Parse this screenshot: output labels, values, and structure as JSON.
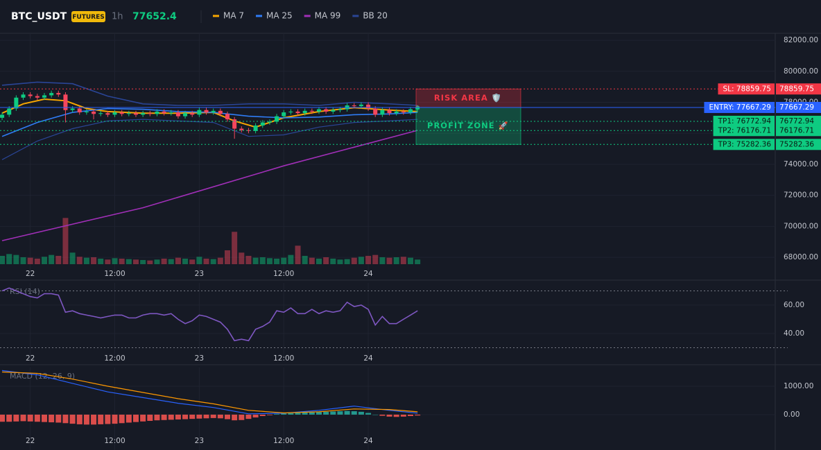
{
  "header": {
    "symbol": "BTC_USDT",
    "badge": "FUTURES",
    "interval": "1h",
    "price": 77652.4
  },
  "chart_data": [
    {
      "type": "candlestick",
      "x": [
        0,
        1,
        2,
        3,
        4,
        5,
        6,
        7,
        8,
        9,
        10,
        11,
        12,
        13,
        14,
        15,
        16,
        17,
        18,
        19,
        20,
        21,
        22,
        23,
        24,
        25,
        26,
        27,
        28,
        29,
        30,
        31,
        32,
        33,
        34,
        35,
        36,
        37,
        38,
        39,
        40,
        41,
        42,
        43,
        44,
        45,
        46,
        47,
        48,
        49,
        50,
        51,
        52,
        53,
        54,
        55,
        56,
        57,
        58,
        59
      ],
      "open": [
        77000,
        77200,
        77600,
        78300,
        78500,
        78400,
        78300,
        78450,
        78600,
        78500,
        77500,
        77600,
        77350,
        77400,
        77250,
        77300,
        77200,
        77350,
        77250,
        77300,
        77200,
        77300,
        77250,
        77400,
        77300,
        77350,
        77100,
        77300,
        77200,
        77500,
        77350,
        77450,
        77250,
        76900,
        76300,
        76200,
        76150,
        76500,
        76700,
        76750,
        77100,
        77350,
        77400,
        77300,
        77450,
        77400,
        77550,
        77400,
        77500,
        77550,
        77800,
        77750,
        77850,
        77600,
        77200,
        77500,
        77300,
        77400,
        77350,
        77550
      ],
      "high": [
        77350,
        77750,
        78450,
        78650,
        78650,
        78550,
        78600,
        78750,
        78750,
        78650,
        77750,
        77750,
        77550,
        77550,
        77450,
        77450,
        77500,
        77500,
        77450,
        77450,
        77450,
        77450,
        77550,
        77550,
        77500,
        77500,
        77450,
        77450,
        77650,
        77650,
        77600,
        77600,
        77400,
        77050,
        76450,
        76350,
        76650,
        76850,
        76900,
        77250,
        77500,
        77550,
        77550,
        77600,
        77600,
        77700,
        77700,
        77650,
        77700,
        77950,
        77950,
        78000,
        78000,
        77750,
        77650,
        77650,
        77550,
        77550,
        77700,
        77800
      ],
      "low": [
        76850,
        77050,
        77450,
        78150,
        78250,
        78150,
        78150,
        78300,
        78350,
        76700,
        77350,
        77200,
        77200,
        76900,
        77100,
        77050,
        77050,
        77100,
        77100,
        77050,
        77050,
        77100,
        77100,
        77150,
        77150,
        76950,
        76950,
        77050,
        77050,
        77200,
        77200,
        77100,
        76750,
        75650,
        76050,
        76000,
        76000,
        76350,
        76550,
        76600,
        76950,
        77200,
        77150,
        77150,
        77250,
        77250,
        77250,
        77250,
        77350,
        77400,
        77600,
        77600,
        77450,
        77050,
        77050,
        77150,
        77150,
        77200,
        77200,
        77400
      ],
      "close": [
        77200,
        77600,
        78300,
        78500,
        78400,
        78300,
        78450,
        78600,
        78500,
        77500,
        77600,
        77350,
        77400,
        77250,
        77300,
        77200,
        77350,
        77250,
        77300,
        77200,
        77300,
        77250,
        77400,
        77300,
        77350,
        77100,
        77300,
        77200,
        77500,
        77350,
        77450,
        77250,
        76900,
        76300,
        76200,
        76150,
        76500,
        76700,
        76750,
        77100,
        77350,
        77400,
        77300,
        77450,
        77400,
        77550,
        77400,
        77500,
        77550,
        77800,
        77750,
        77850,
        77600,
        77200,
        77500,
        77300,
        77400,
        77350,
        77550,
        77652.4
      ],
      "up_color": "#0ecb81",
      "down_color": "#f6465d",
      "xlim": [
        -0.3,
        109.8
      ],
      "xticks": [
        {
          "value": 4,
          "label": "22"
        },
        {
          "value": 16,
          "label": "12:00"
        },
        {
          "value": 28,
          "label": "23"
        },
        {
          "value": 40,
          "label": "12:00"
        },
        {
          "value": 52,
          "label": "24"
        }
      ],
      "ylim": [
        66800,
        82450
      ],
      "yticks": [
        {
          "value": 68000,
          "label": "68000.00"
        },
        {
          "value": 70000,
          "label": "70000.00"
        },
        {
          "value": 72000,
          "label": "72000.00"
        },
        {
          "value": 74000,
          "label": "74000.00"
        },
        {
          "value": 76000,
          "label": "76000.00"
        },
        {
          "value": 78000,
          "label": "78000.00"
        },
        {
          "value": 80000,
          "label": "80000.00"
        },
        {
          "value": 82000,
          "label": "82000.00"
        }
      ],
      "grid": true,
      "lines": [
        {
          "name": "MA 7",
          "color": "#f7a600",
          "x": [
            0,
            3,
            6,
            9,
            12,
            15,
            20,
            25,
            30,
            33,
            36,
            40,
            45,
            50,
            55,
            59
          ],
          "values": [
            77300,
            77900,
            78200,
            78100,
            77600,
            77400,
            77300,
            77300,
            77350,
            76800,
            76400,
            77000,
            77400,
            77650,
            77500,
            77400
          ]
        },
        {
          "name": "MA 25",
          "color": "#2f7cf6",
          "x": [
            0,
            5,
            10,
            15,
            20,
            25,
            30,
            35,
            40,
            45,
            50,
            55,
            59
          ],
          "values": [
            75800,
            76700,
            77350,
            77600,
            77550,
            77400,
            77350,
            77100,
            77000,
            77050,
            77200,
            77250,
            77350
          ]
        },
        {
          "name": "MA 99",
          "color": "#a12fb8",
          "x": [
            0,
            20,
            40,
            59
          ],
          "values": [
            69075,
            71200,
            73900,
            76190
          ]
        },
        {
          "name": "BB 20",
          "color": "#2a4596",
          "x": [
            0,
            5,
            10,
            15,
            20,
            25,
            30,
            35,
            40,
            45,
            50,
            55,
            59
          ],
          "values": [
            79100,
            79300,
            79200,
            78400,
            77900,
            77800,
            77800,
            77900,
            77900,
            77800,
            78000,
            77900,
            77800
          ],
          "lower": [
            74300,
            75500,
            76300,
            76800,
            76900,
            76800,
            76700,
            75800,
            75900,
            76400,
            76700,
            76800,
            76900
          ]
        }
      ],
      "volume": {
        "values": [
          18,
          22,
          20,
          15,
          14,
          12,
          16,
          20,
          18,
          100,
          25,
          16,
          14,
          15,
          12,
          10,
          13,
          12,
          11,
          10,
          9,
          8,
          10,
          12,
          11,
          14,
          12,
          10,
          16,
          12,
          11,
          14,
          30,
          70,
          25,
          18,
          14,
          15,
          13,
          12,
          14,
          20,
          40,
          18,
          14,
          12,
          15,
          12,
          10,
          11,
          14,
          16,
          18,
          20,
          15,
          14,
          15,
          16,
          14,
          10
        ],
        "ylim": [
          0,
          150
        ]
      },
      "levels": [
        {
          "tag": "SL: 78859.75",
          "value": 78859.75,
          "color": "#f23645",
          "style": "dotted"
        },
        {
          "tag": "ENTRY: 77667.29",
          "value": 77667.29,
          "color": "#2962ff",
          "style": "solid"
        },
        {
          "tag": "TP1: 76772.94",
          "value": 76772.94,
          "color": "#0ecb81",
          "style": "dotted"
        },
        {
          "tag": "TP2: 76176.71",
          "value": 76176.71,
          "color": "#0ecb81",
          "style": "dotted"
        },
        {
          "tag": "TP3: 75282.36",
          "value": 75282.36,
          "color": "#0ecb81",
          "style": "dotted"
        }
      ],
      "zones": [
        {
          "label": "RISK AREA 🛡️",
          "from": 78859.75,
          "to": 77667.29,
          "color": "#f23645"
        },
        {
          "label": "PROFIT ZONE 🚀",
          "from": 77667.29,
          "to": 75282.36,
          "color": "#0ecb81"
        }
      ]
    },
    {
      "type": "line",
      "title": "RSI (14)",
      "x": [
        0,
        1,
        2,
        3,
        4,
        5,
        6,
        7,
        8,
        9,
        10,
        11,
        12,
        13,
        14,
        15,
        16,
        17,
        18,
        19,
        20,
        21,
        22,
        23,
        24,
        25,
        26,
        27,
        28,
        29,
        30,
        31,
        32,
        33,
        34,
        35,
        36,
        37,
        38,
        39,
        40,
        41,
        42,
        43,
        44,
        45,
        46,
        47,
        48,
        49,
        50,
        51,
        52,
        53,
        54,
        55,
        56,
        57,
        58,
        59
      ],
      "values": [
        70,
        72,
        70,
        68,
        66,
        65,
        68,
        68,
        67,
        55,
        56,
        54,
        53,
        52,
        51,
        52,
        53,
        53,
        51,
        51,
        53,
        54,
        54,
        53,
        54,
        50,
        47,
        49,
        53,
        52,
        50,
        48,
        43,
        35,
        36,
        35,
        43,
        45,
        48,
        56,
        55,
        58,
        54,
        54,
        57,
        54,
        56,
        55,
        56,
        62,
        59,
        60,
        57,
        46,
        52,
        47,
        47,
        50,
        53,
        56
      ],
      "color": "#7e57c2",
      "xlim": [
        -0.3,
        109.8
      ],
      "xticks": [
        {
          "value": 4,
          "label": "22"
        },
        {
          "value": 16,
          "label": "12:00"
        },
        {
          "value": 28,
          "label": "23"
        },
        {
          "value": 40,
          "label": "12:00"
        },
        {
          "value": 52,
          "label": "24"
        }
      ],
      "ylim": [
        21,
        75.6
      ],
      "yticks": [
        {
          "value": 40,
          "label": "40.00"
        },
        {
          "value": 60,
          "label": "60.00"
        }
      ],
      "levels": [
        70,
        30
      ]
    },
    {
      "type": "bar",
      "title": "MACD (12, 26, 9)",
      "x": [
        0,
        1,
        2,
        3,
        4,
        5,
        6,
        7,
        8,
        9,
        10,
        11,
        12,
        13,
        14,
        15,
        16,
        17,
        18,
        19,
        20,
        21,
        22,
        23,
        24,
        25,
        26,
        27,
        28,
        29,
        30,
        31,
        32,
        33,
        34,
        35,
        36,
        37,
        38,
        39,
        40,
        41,
        42,
        43,
        44,
        45,
        46,
        47,
        48,
        49,
        50,
        51,
        52,
        53,
        54,
        55,
        56,
        57,
        58,
        59
      ],
      "histogram": [
        -250,
        -250,
        -240,
        -230,
        -240,
        -250,
        -260,
        -270,
        -280,
        -300,
        -320,
        -340,
        -350,
        -350,
        -340,
        -330,
        -320,
        -300,
        -280,
        -260,
        -240,
        -220,
        -200,
        -190,
        -180,
        -170,
        -160,
        -150,
        -140,
        -130,
        -120,
        -130,
        -160,
        -200,
        -190,
        -150,
        -100,
        -50,
        -20,
        20,
        40,
        50,
        60,
        70,
        80,
        90,
        100,
        110,
        120,
        130,
        120,
        100,
        60,
        0,
        -40,
        -70,
        -80,
        -70,
        -50,
        -30
      ],
      "up_color": "#26a69a",
      "down_color": "#ef5350",
      "lines": [
        {
          "color": "#2962ff",
          "x": [
            0,
            5,
            10,
            15,
            20,
            25,
            30,
            35,
            40,
            45,
            50,
            55,
            59
          ],
          "values": [
            1550,
            1400,
            1100,
            800,
            600,
            400,
            250,
            30,
            50,
            150,
            300,
            150,
            50
          ]
        },
        {
          "color": "#ff9800",
          "x": [
            0,
            5,
            10,
            15,
            20,
            25,
            30,
            35,
            40,
            45,
            50,
            55,
            59
          ],
          "values": [
            1500,
            1450,
            1250,
            1000,
            780,
            560,
            380,
            150,
            60,
            100,
            200,
            180,
            100
          ]
        }
      ],
      "xlim": [
        -0.3,
        109.8
      ],
      "xticks": [
        {
          "value": 4,
          "label": "22"
        },
        {
          "value": 16,
          "label": "12:00"
        },
        {
          "value": 28,
          "label": "23"
        },
        {
          "value": 40,
          "label": "12:00"
        },
        {
          "value": 52,
          "label": "24"
        }
      ],
      "ylim": [
        -1244,
        1658
      ],
      "yticks": [
        {
          "value": 0,
          "label": "0.00"
        },
        {
          "value": 1000,
          "label": "1000.00"
        }
      ]
    }
  ]
}
